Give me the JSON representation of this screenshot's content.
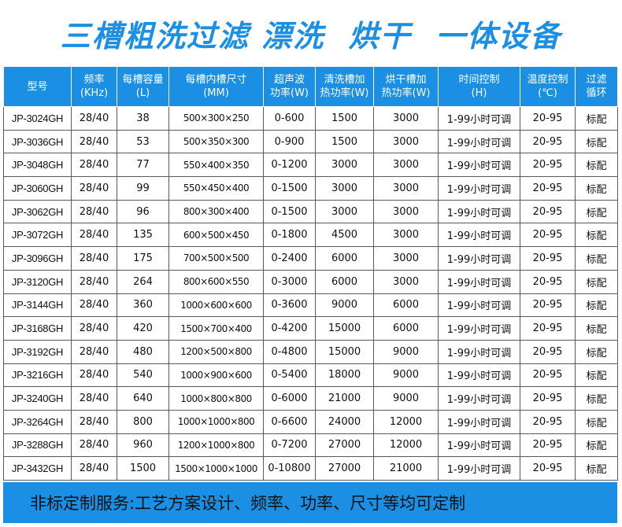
{
  "title": "三槽粗洗过滤 漂洗  烘干  一体设备",
  "table": {
    "headers": [
      [
        "型号"
      ],
      [
        "频率",
        "(KHz)"
      ],
      [
        "每槽容量",
        "(L)"
      ],
      [
        "每槽内槽尺寸",
        "(MM)"
      ],
      [
        "超声波",
        "功率(W)"
      ],
      [
        "清洗槽加",
        "热功率(W)"
      ],
      [
        "烘干槽加",
        "热功率(W)"
      ],
      [
        "时间控制",
        "(H)"
      ],
      [
        "温度控制",
        "(℃)"
      ],
      [
        "过滤",
        "循环"
      ]
    ],
    "rows": [
      [
        "JP-3024GH",
        "28/40",
        "38",
        "500×300×250",
        "0-600",
        "1500",
        "3000",
        "1-99小时可调",
        "20-95",
        "标配"
      ],
      [
        "JP-3036GH",
        "28/40",
        "53",
        "500×350×300",
        "0-900",
        "1500",
        "3000",
        "1-99小时可调",
        "20-95",
        "标配"
      ],
      [
        "JP-3048GH",
        "28/40",
        "77",
        "550×400×350",
        "0-1200",
        "3000",
        "3000",
        "1-99小时可调",
        "20-95",
        "标配"
      ],
      [
        "JP-3060GH",
        "28/40",
        "99",
        "550×450×400",
        "0-1500",
        "3000",
        "3000",
        "1-99小时可调",
        "20-95",
        "标配"
      ],
      [
        "JP-3062GH",
        "28/40",
        "96",
        "800×300×400",
        "0-1500",
        "3000",
        "3000",
        "1-99小时可调",
        "20-95",
        "标配"
      ],
      [
        "JP-3072GH",
        "28/40",
        "135",
        "600×500×450",
        "0-1800",
        "4500",
        "3000",
        "1-99小时可调",
        "20-95",
        "标配"
      ],
      [
        "JP-3096GH",
        "28/40",
        "175",
        "700×500×500",
        "0-2400",
        "6000",
        "3000",
        "1-99小时可调",
        "20-95",
        "标配"
      ],
      [
        "JP-3120GH",
        "28/40",
        "264",
        "800×600×550",
        "0-3000",
        "6000",
        "3000",
        "1-99小时可调",
        "20-95",
        "标配"
      ],
      [
        "JP-3144GH",
        "28/40",
        "360",
        "1000×600×600",
        "0-3600",
        "9000",
        "6000",
        "1-99小时可调",
        "20-95",
        "标配"
      ],
      [
        "JP-3168GH",
        "28/40",
        "420",
        "1500×700×400",
        "0-4200",
        "15000",
        "6000",
        "1-99小时可调",
        "20-95",
        "标配"
      ],
      [
        "JP-3192GH",
        "28/40",
        "480",
        "1200×500×800",
        "0-4800",
        "15000",
        "9000",
        "1-99小时可调",
        "20-95",
        "标配"
      ],
      [
        "JP-3216GH",
        "28/40",
        "540",
        "1000×900×600",
        "0-5400",
        "18000",
        "9000",
        "1-99小时可调",
        "20-95",
        "标配"
      ],
      [
        "JP-3240GH",
        "28/40",
        "640",
        "1000×800×800",
        "0-6000",
        "21000",
        "9000",
        "1-99小时可调",
        "20-95",
        "标配"
      ],
      [
        "JP-3264GH",
        "28/40",
        "800",
        "1000×1000×800",
        "0-6600",
        "24000",
        "12000",
        "1-99小时可调",
        "20-95",
        "标配"
      ],
      [
        "JP-3288GH",
        "28/40",
        "960",
        "1200×1000×800",
        "0-7200",
        "27000",
        "12000",
        "1-99小时可调",
        "20-95",
        "标配"
      ],
      [
        "JP-3432GH",
        "28/40",
        "1500",
        "1500×1000×1000",
        "0-10800",
        "27000",
        "21000",
        "1-99小时可调",
        "20-95",
        "标配"
      ]
    ]
  },
  "footer": "非标定制服务:工艺方案设计、频率、功率、尺寸等均可定制",
  "colors": {
    "accent": "#1a8fe3",
    "border": "#5a5a5a"
  }
}
